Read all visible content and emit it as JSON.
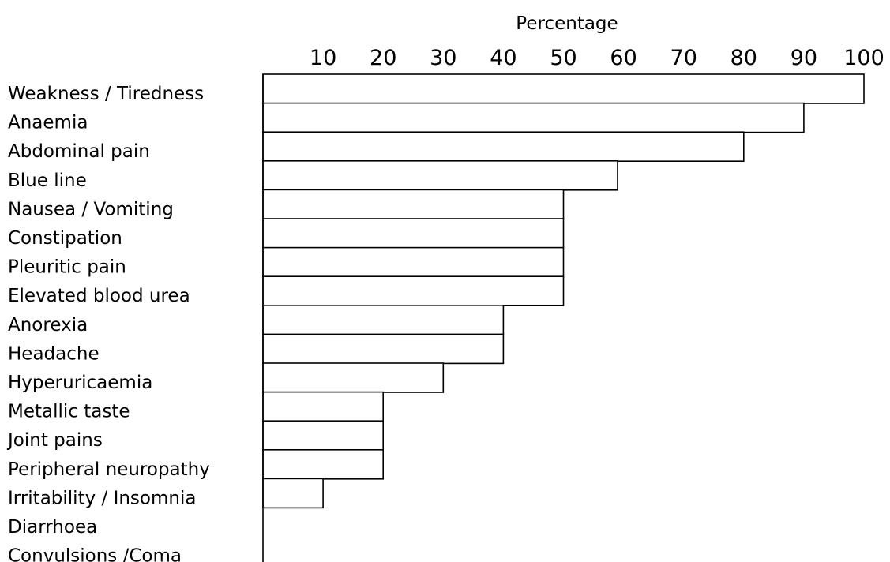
{
  "chart_data": {
    "type": "bar",
    "orientation": "horizontal",
    "title": "Percentage",
    "xlabel": "Percentage",
    "ylabel": "",
    "xlim": [
      0,
      100
    ],
    "ticks": [
      10,
      20,
      30,
      40,
      50,
      60,
      70,
      80,
      90,
      100
    ],
    "tick_position": "top",
    "grid": false,
    "legend": "none",
    "categories": [
      "Weakness / Tiredness",
      "Anaemia",
      "Abdominal pain",
      "Blue line",
      "Nausea / Vomiting",
      "Constipation",
      "Pleuritic pain",
      "Elevated blood urea",
      "Anorexia",
      "Headache",
      "Hyperuricaemia",
      "Metallic taste",
      "Joint pains",
      "Peripheral neuropathy",
      "Irritability / Insomnia",
      "Diarrhoea",
      "Convulsions /Coma"
    ],
    "values": [
      100,
      90,
      80,
      59,
      50,
      50,
      50,
      50,
      40,
      40,
      30,
      20,
      20,
      20,
      10,
      0,
      0
    ]
  }
}
